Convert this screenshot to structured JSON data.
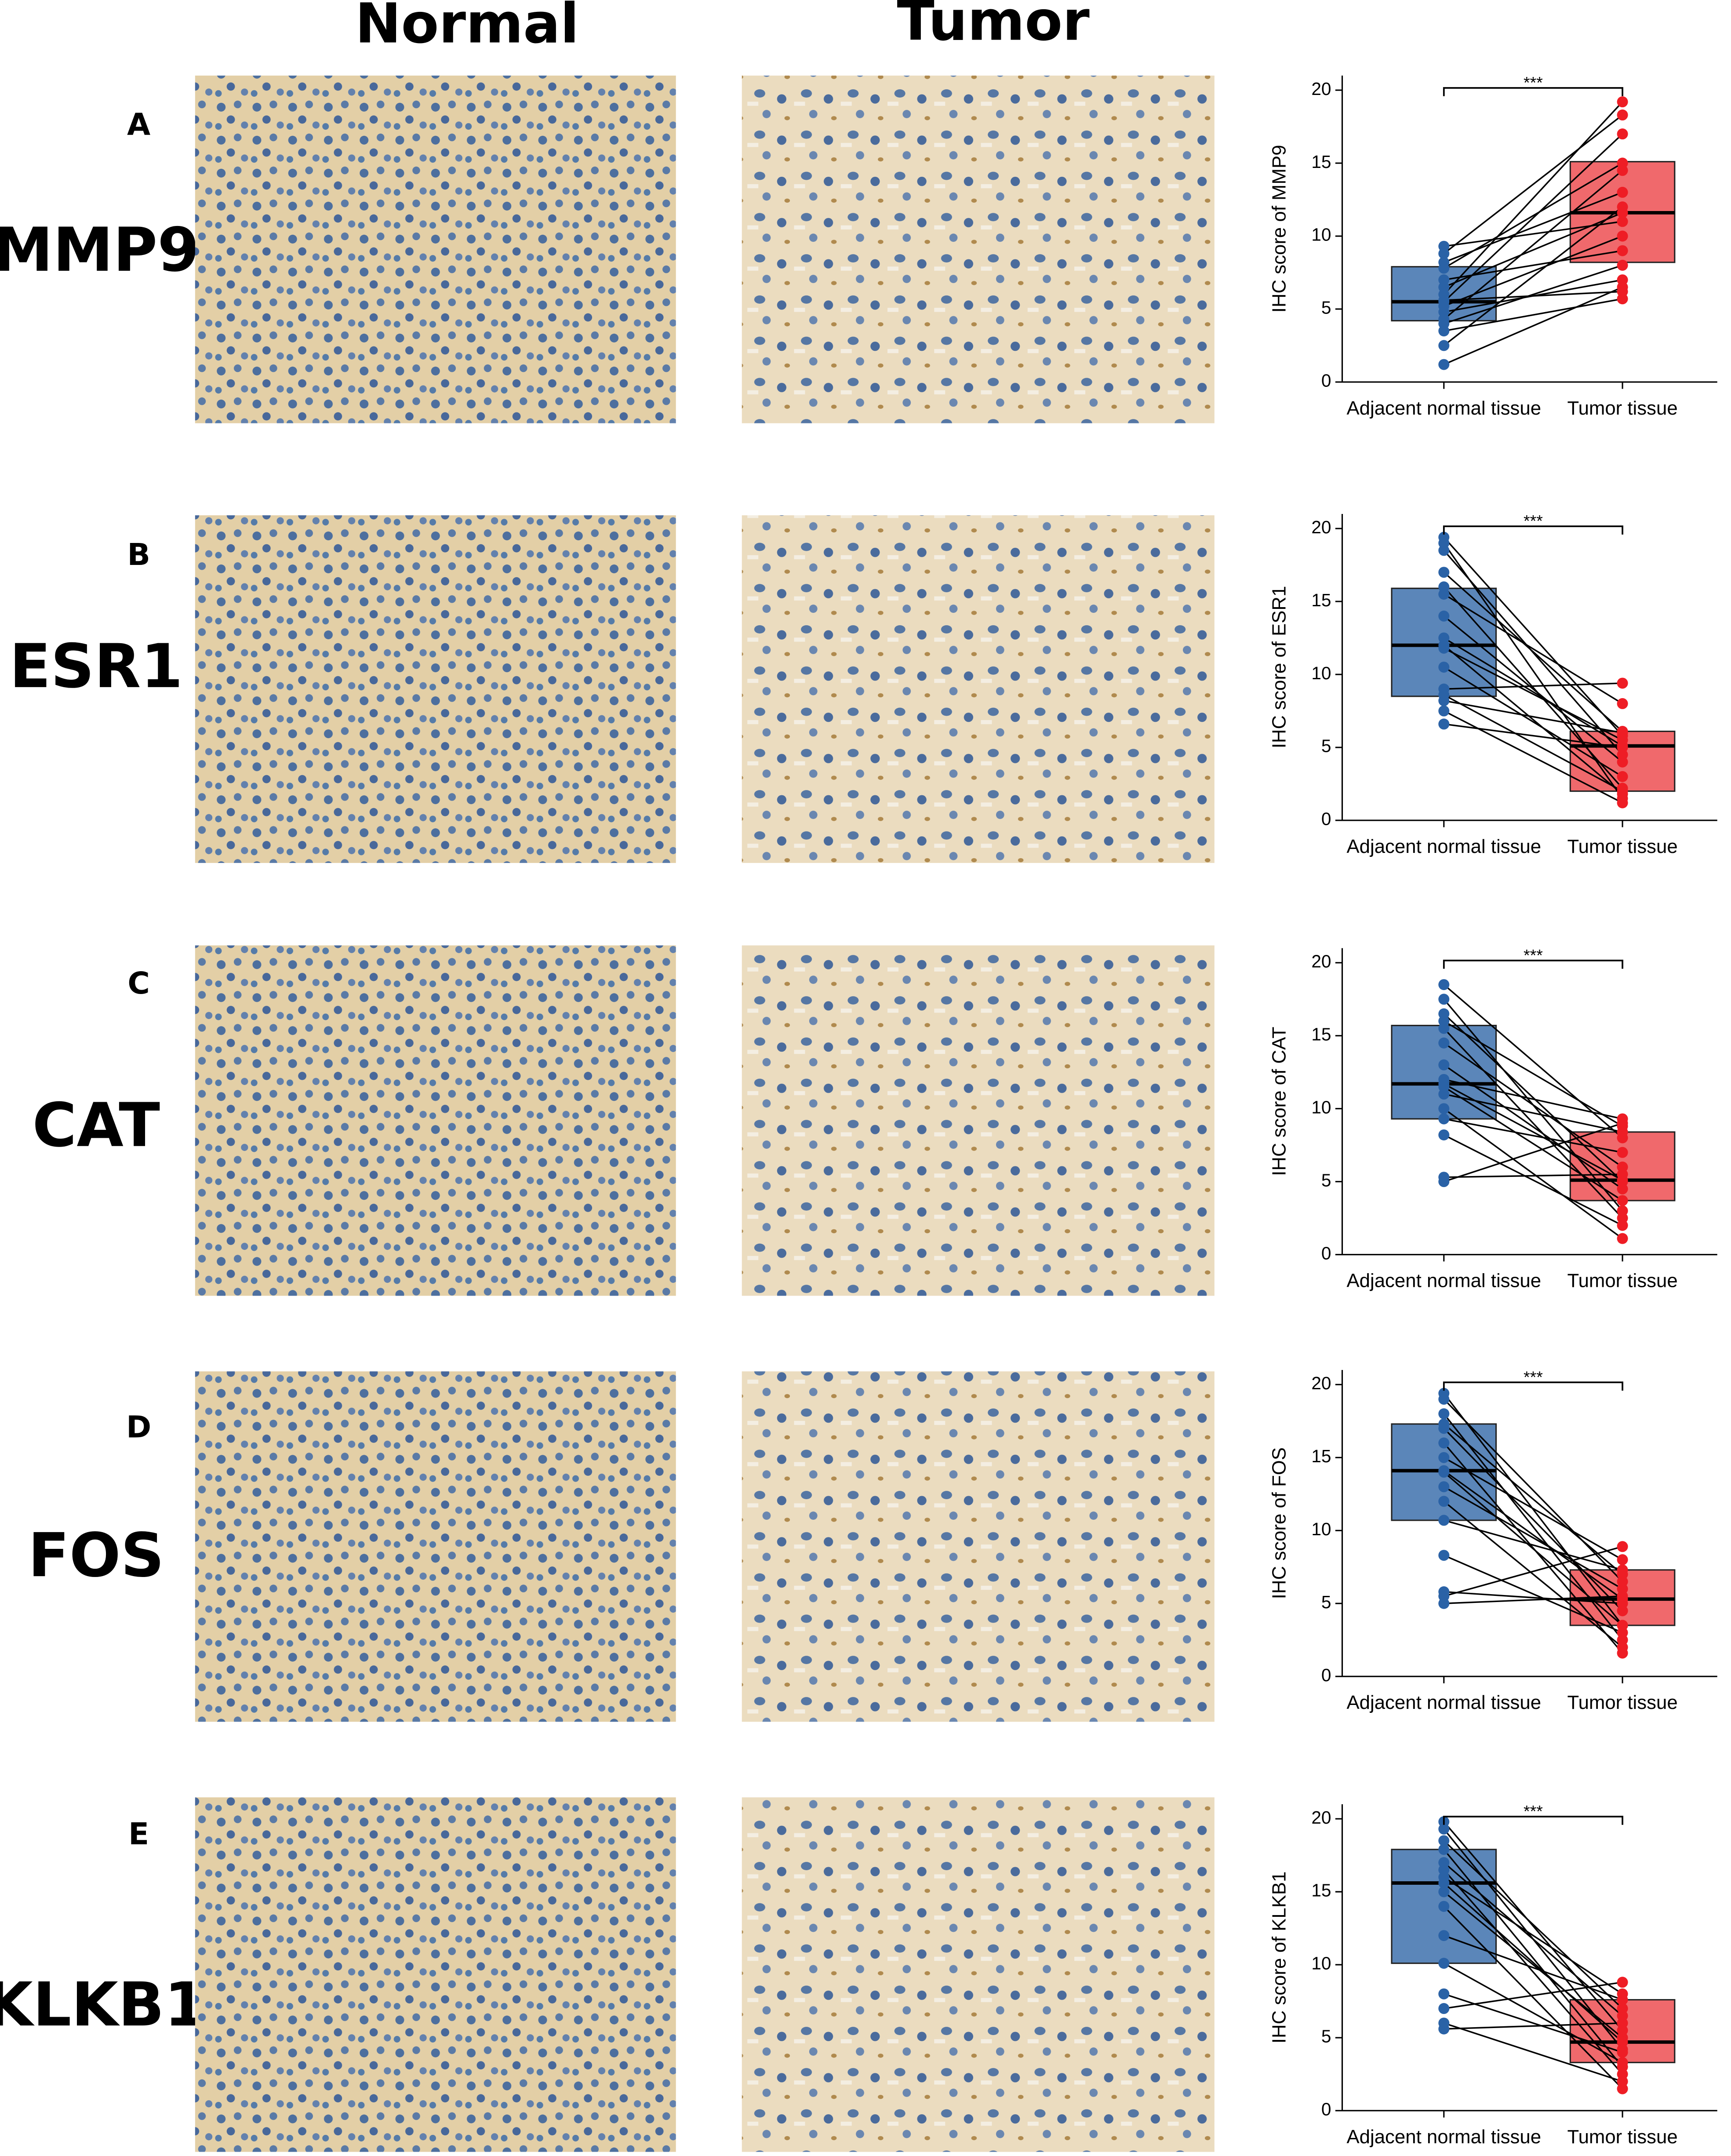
{
  "columns": [
    "Normal",
    "Tumor"
  ],
  "panels": [
    {
      "letter": "A",
      "gene": "MMP9"
    },
    {
      "letter": "B",
      "gene": "ESR1"
    },
    {
      "letter": "C",
      "gene": "CAT"
    },
    {
      "letter": "D",
      "gene": "FOS"
    },
    {
      "letter": "E",
      "gene": "KLKB1"
    }
  ],
  "chart_data": [
    {
      "type": "box",
      "ylabel": "IHC score of MMP9",
      "categories": [
        "Adjacent normal tissue",
        "Tumor tissue"
      ],
      "colors": [
        "#5b86b9",
        "#f0696c"
      ],
      "point_colors": [
        "#2a62a6",
        "#ee1d25"
      ],
      "annotation": "***",
      "boxes": [
        {
          "q1": 4.2,
          "median": 5.5,
          "q3": 7.9
        },
        {
          "q1": 8.2,
          "median": 11.6,
          "q3": 15.1
        }
      ],
      "points": [
        [
          1.2,
          2.5,
          3.5,
          4.0,
          4.3,
          4.8,
          5.2,
          5.5,
          5.6,
          6.0,
          6.5,
          7.0,
          7.8,
          8.2,
          8.8,
          9.3
        ],
        [
          6.5,
          12.0,
          5.7,
          8.0,
          14.5,
          7.0,
          10.0,
          17.0,
          6.2,
          19.2,
          11.6,
          9.0,
          15.0,
          13.0,
          18.3,
          11.0
        ]
      ],
      "ylim": [
        0,
        21
      ],
      "yticks": [
        0,
        5,
        10,
        15,
        20
      ]
    },
    {
      "type": "box",
      "ylabel": "IHC score of ESR1",
      "categories": [
        "Adjacent normal tissue",
        "Tumor tissue"
      ],
      "colors": [
        "#5b86b9",
        "#f0696c"
      ],
      "point_colors": [
        "#2a62a6",
        "#ee1d25"
      ],
      "annotation": "***",
      "boxes": [
        {
          "q1": 8.5,
          "median": 12.0,
          "q3": 15.9
        },
        {
          "q1": 2.0,
          "median": 5.1,
          "q3": 6.1
        }
      ],
      "points": [
        [
          6.6,
          7.5,
          8.2,
          8.6,
          9.0,
          10.5,
          11.8,
          12.0,
          12.5,
          14.0,
          15.5,
          16.0,
          17.0,
          18.5,
          19.0,
          19.4
        ],
        [
          5.0,
          1.2,
          6.0,
          2.0,
          9.4,
          3.0,
          5.5,
          1.8,
          5.1,
          4.0,
          8.0,
          2.2,
          6.1,
          4.5,
          1.5,
          5.8
        ]
      ],
      "ylim": [
        0,
        21
      ],
      "yticks": [
        0,
        5,
        10,
        15,
        20
      ]
    },
    {
      "type": "box",
      "ylabel": "IHC score of CAT",
      "categories": [
        "Adjacent normal tissue",
        "Tumor tissue"
      ],
      "colors": [
        "#5b86b9",
        "#f0696c"
      ],
      "point_colors": [
        "#2a62a6",
        "#ee1d25"
      ],
      "annotation": "***",
      "boxes": [
        {
          "q1": 9.3,
          "median": 11.7,
          "q3": 15.7
        },
        {
          "q1": 3.7,
          "median": 5.1,
          "q3": 8.4
        }
      ],
      "points": [
        [
          5.0,
          5.3,
          8.2,
          9.3,
          10.0,
          11.0,
          11.5,
          11.7,
          12.0,
          13.0,
          14.5,
          15.5,
          16.0,
          16.5,
          17.5,
          18.5
        ],
        [
          9.0,
          5.5,
          2.0,
          7.0,
          1.1,
          8.4,
          3.7,
          5.1,
          9.3,
          4.5,
          6.0,
          2.5,
          8.8,
          5.0,
          3.0,
          8.0
        ]
      ],
      "ylim": [
        0,
        21
      ],
      "yticks": [
        0,
        5,
        10,
        15,
        20
      ]
    },
    {
      "type": "box",
      "ylabel": "IHC score of FOS",
      "categories": [
        "Adjacent normal tissue",
        "Tumor tissue"
      ],
      "colors": [
        "#5b86b9",
        "#f0696c"
      ],
      "point_colors": [
        "#2a62a6",
        "#ee1d25"
      ],
      "annotation": "***",
      "boxes": [
        {
          "q1": 10.7,
          "median": 14.1,
          "q3": 17.3
        },
        {
          "q1": 3.5,
          "median": 5.3,
          "q3": 7.3
        }
      ],
      "points": [
        [
          5.0,
          5.5,
          5.8,
          8.3,
          10.7,
          12.0,
          13.0,
          14.0,
          14.1,
          15.0,
          16.0,
          17.0,
          17.3,
          18.0,
          19.0,
          19.4
        ],
        [
          5.5,
          8.9,
          5.0,
          3.0,
          7.3,
          2.0,
          6.0,
          3.5,
          5.3,
          8.0,
          1.6,
          4.5,
          7.0,
          2.5,
          6.5,
          3.5
        ]
      ],
      "ylim": [
        0,
        21
      ],
      "yticks": [
        0,
        5,
        10,
        15,
        20
      ]
    },
    {
      "type": "box",
      "ylabel": "IHC score of KLKB1",
      "categories": [
        "Adjacent normal tissue",
        "Tumor tissue"
      ],
      "colors": [
        "#5b86b9",
        "#f0696c"
      ],
      "point_colors": [
        "#2a62a6",
        "#ee1d25"
      ],
      "annotation": "***",
      "boxes": [
        {
          "q1": 10.1,
          "median": 15.6,
          "q3": 17.9
        },
        {
          "q1": 3.3,
          "median": 4.7,
          "q3": 7.6
        }
      ],
      "points": [
        [
          5.6,
          6.0,
          7.0,
          8.0,
          10.1,
          12.0,
          14.0,
          15.0,
          15.6,
          16.0,
          16.5,
          17.0,
          17.9,
          18.5,
          19.3,
          19.8
        ],
        [
          6.0,
          2.0,
          8.8,
          4.0,
          3.3,
          7.6,
          1.5,
          5.0,
          4.7,
          8.0,
          2.5,
          6.5,
          3.0,
          7.0,
          4.2,
          5.5
        ]
      ],
      "ylim": [
        0,
        21
      ],
      "yticks": [
        0,
        5,
        10,
        15,
        20
      ]
    }
  ]
}
